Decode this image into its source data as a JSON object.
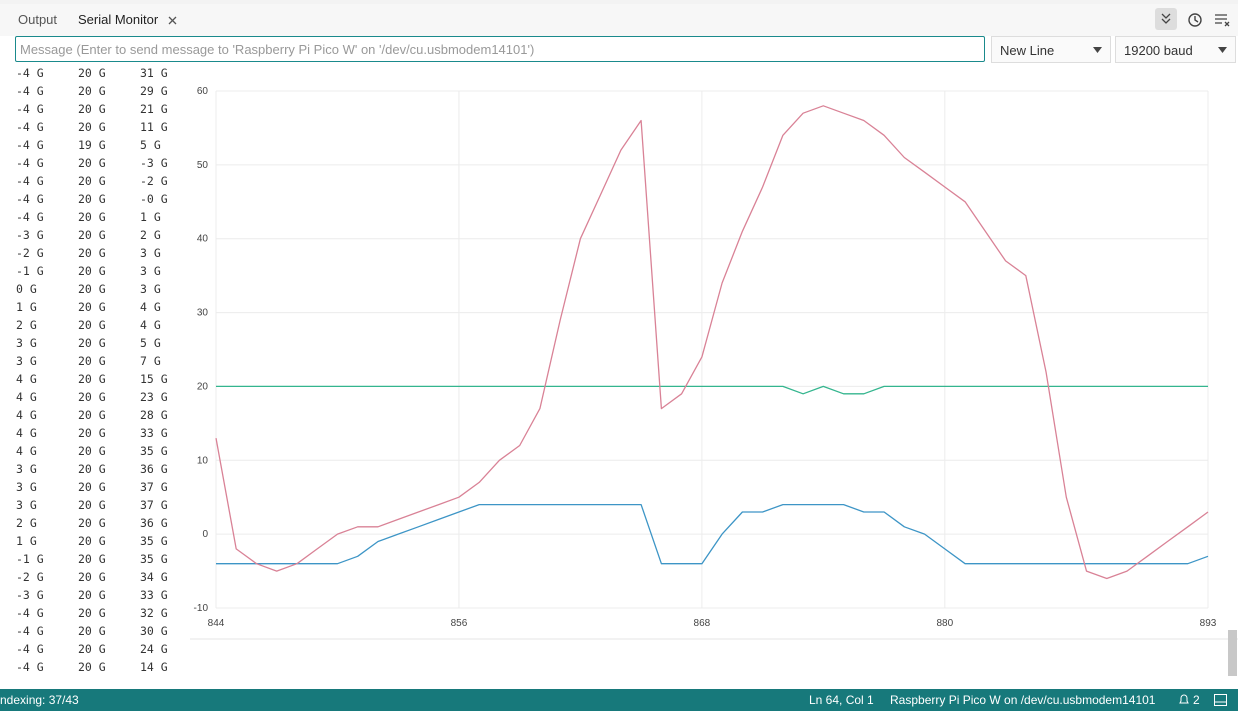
{
  "tabs": [
    "Output",
    "Serial Monitor"
  ],
  "input_placeholder": "Message (Enter to send message to 'Raspberry Pi Pico W' on '/dev/cu.usbmodem14101')",
  "line_ending": "New Line",
  "baud": "19200 baud",
  "serial_rows": [
    [
      "-4 G",
      "20 G",
      "31 G"
    ],
    [
      "-4 G",
      "20 G",
      "29 G"
    ],
    [
      "-4 G",
      "20 G",
      "21 G"
    ],
    [
      "-4 G",
      "20 G",
      "11 G"
    ],
    [
      "-4 G",
      "19 G",
      "5 G"
    ],
    [
      "-4 G",
      "20 G",
      "-3 G"
    ],
    [
      "-4 G",
      "20 G",
      "-2 G"
    ],
    [
      "-4 G",
      "20 G",
      "-0 G"
    ],
    [
      "-4 G",
      "20 G",
      "1 G"
    ],
    [
      "-3 G",
      "20 G",
      "2 G"
    ],
    [
      "-2 G",
      "20 G",
      "3 G"
    ],
    [
      "-1 G",
      "20 G",
      "3 G"
    ],
    [
      "0 G",
      "20 G",
      "3 G"
    ],
    [
      "1 G",
      "20 G",
      "4 G"
    ],
    [
      "2 G",
      "20 G",
      "4 G"
    ],
    [
      "3 G",
      "20 G",
      "5 G"
    ],
    [
      "3 G",
      "20 G",
      "7 G"
    ],
    [
      "4 G",
      "20 G",
      "15 G"
    ],
    [
      "4 G",
      "20 G",
      "23 G"
    ],
    [
      "4 G",
      "20 G",
      "28 G"
    ],
    [
      "4 G",
      "20 G",
      "33 G"
    ],
    [
      "4 G",
      "20 G",
      "35 G"
    ],
    [
      "3 G",
      "20 G",
      "36 G"
    ],
    [
      "3 G",
      "20 G",
      "37 G"
    ],
    [
      "3 G",
      "20 G",
      "37 G"
    ],
    [
      "2 G",
      "20 G",
      "36 G"
    ],
    [
      "1 G",
      "20 G",
      "35 G"
    ],
    [
      "-1 G",
      "20 G",
      "35 G"
    ],
    [
      "-2 G",
      "20 G",
      "34 G"
    ],
    [
      "-3 G",
      "20 G",
      "33 G"
    ],
    [
      "-4 G",
      "20 G",
      "32 G"
    ],
    [
      "-4 G",
      "20 G",
      "30 G"
    ],
    [
      "-4 G",
      "20 G",
      "24 G"
    ],
    [
      "-4 G",
      "20 G",
      "14 G"
    ]
  ],
  "status": {
    "left": "ndexing: 37/43",
    "position": "Ln 64, Col 1",
    "board": "Raspberry Pi Pico W on /dev/cu.usbmodem14101",
    "notifications": "2"
  },
  "chart_data": {
    "type": "line",
    "x": [
      844,
      845,
      846,
      847,
      848,
      849,
      850,
      851,
      852,
      853,
      854,
      855,
      856,
      857,
      858,
      859,
      860,
      861,
      862,
      863,
      864,
      865,
      866,
      867,
      868,
      869,
      870,
      871,
      872,
      873,
      874,
      875,
      876,
      877,
      878,
      879,
      880,
      881,
      882,
      883,
      884,
      885,
      886,
      887,
      888,
      889,
      890,
      891,
      892,
      893
    ],
    "series": [
      {
        "color": "#3d95c6",
        "values": [
          -4,
          -4,
          -4,
          -4,
          -4,
          -4,
          -4,
          -3,
          -1,
          0,
          1,
          2,
          3,
          4,
          4,
          4,
          4,
          4,
          4,
          4,
          4,
          4,
          -4,
          -4,
          -4,
          0,
          3,
          3,
          4,
          4,
          4,
          4,
          3,
          3,
          1,
          0,
          -2,
          -4,
          -4,
          -4,
          -4,
          -4,
          -4,
          -4,
          -4,
          -4,
          -4,
          -4,
          -4,
          -3
        ]
      },
      {
        "color": "#34b58e",
        "values": [
          20,
          20,
          20,
          20,
          20,
          20,
          20,
          20,
          20,
          20,
          20,
          20,
          20,
          20,
          20,
          20,
          20,
          20,
          20,
          20,
          20,
          20,
          20,
          20,
          20,
          20,
          20,
          20,
          20,
          19,
          20,
          19,
          19,
          20,
          20,
          20,
          20,
          20,
          20,
          20,
          20,
          20,
          20,
          20,
          20,
          20,
          20,
          20,
          20,
          20
        ]
      },
      {
        "color": "#d98296",
        "values": [
          13,
          -2,
          -4,
          -5,
          -4,
          -2,
          0,
          1,
          1,
          2,
          3,
          4,
          5,
          7,
          10,
          12,
          17,
          29,
          40,
          46,
          52,
          56,
          17,
          19,
          24,
          34,
          41,
          47,
          54,
          57,
          58,
          57,
          56,
          54,
          51,
          49,
          47,
          45,
          41,
          37,
          35,
          22,
          5,
          -5,
          -6,
          -5,
          -3,
          -1,
          1,
          3
        ]
      }
    ],
    "xlim": [
      844,
      893
    ],
    "ylim": [
      -10,
      60
    ],
    "xticks": [
      844,
      856,
      868,
      880,
      893
    ],
    "yticks": [
      -10,
      0,
      10,
      20,
      30,
      40,
      50,
      60
    ],
    "grid": true
  }
}
